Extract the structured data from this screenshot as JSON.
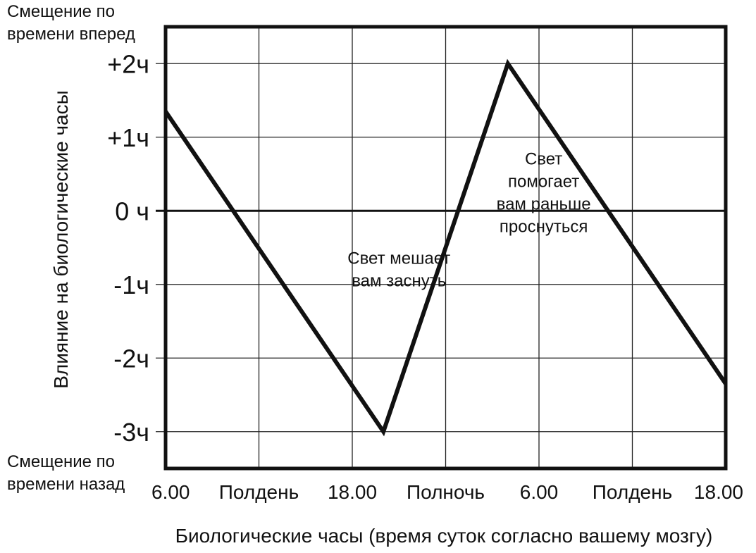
{
  "chart_data": {
    "type": "line",
    "ylabel": "Влияние на  биологические часы",
    "xlabel": "Биологические часы (время суток согласно вашему мозгу)",
    "top_note": [
      "Смещение по",
      "времени вперед"
    ],
    "bottom_note": [
      "Смещение по",
      "времени назад"
    ],
    "x_ticks": [
      "6.00",
      "Полдень",
      "18.00",
      "Полночь",
      "6.00",
      "Полдень",
      "18.00"
    ],
    "x_tick_hours": [
      6,
      12,
      18,
      24,
      30,
      36,
      42
    ],
    "xlim": [
      6,
      42
    ],
    "y_ticks": [
      "+2ч",
      "+1ч",
      "0 ч",
      "-1ч",
      "-2ч",
      "-3ч"
    ],
    "y_tick_values": [
      2,
      1,
      0,
      -1,
      -2,
      -3
    ],
    "ylim": [
      -3.5,
      2.5
    ],
    "grid": true,
    "series": [
      {
        "points": [
          [
            6,
            1.35
          ],
          [
            20,
            -3
          ],
          [
            28,
            2
          ],
          [
            42,
            -2.35
          ]
        ]
      }
    ],
    "annotations": [
      {
        "lines": [
          "Свет мешает",
          "вам заснуть"
        ],
        "x": 21,
        "y": -0.72
      },
      {
        "lines": [
          "Свет",
          "помогает",
          "вам раньше",
          "проснуться"
        ],
        "x": 30.3,
        "y": 0.63
      }
    ],
    "colors": {
      "line": "#111111",
      "grid": "#222222",
      "frame": "#111111"
    }
  }
}
